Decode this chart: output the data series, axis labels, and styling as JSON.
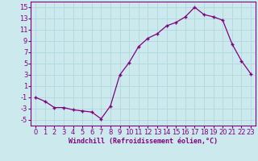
{
  "x": [
    0,
    1,
    2,
    3,
    4,
    5,
    6,
    7,
    8,
    9,
    10,
    11,
    12,
    13,
    14,
    15,
    16,
    17,
    18,
    19,
    20,
    21,
    22,
    23
  ],
  "y": [
    -1,
    -1.7,
    -2.8,
    -2.8,
    -3.2,
    -3.4,
    -3.6,
    -4.8,
    -2.5,
    3.0,
    5.2,
    8.0,
    9.5,
    10.3,
    11.7,
    12.3,
    13.3,
    15.0,
    13.7,
    13.3,
    12.7,
    8.5,
    5.5,
    3.2
  ],
  "line_color": "#800080",
  "marker": "+",
  "marker_size": 3,
  "linewidth": 0.9,
  "xlabel": "Windchill (Refroidissement éolien,°C)",
  "xlim": [
    -0.5,
    23.5
  ],
  "ylim": [
    -6,
    16
  ],
  "yticks": [
    -5,
    -3,
    -1,
    1,
    3,
    5,
    7,
    9,
    11,
    13,
    15
  ],
  "xticks": [
    0,
    1,
    2,
    3,
    4,
    5,
    6,
    7,
    8,
    9,
    10,
    11,
    12,
    13,
    14,
    15,
    16,
    17,
    18,
    19,
    20,
    21,
    22,
    23
  ],
  "bg_color": "#cce9ed",
  "grid_color": "#b0d8de",
  "tick_color": "#800080",
  "label_color": "#800080",
  "xlabel_fontsize": 6.0,
  "tick_fontsize": 6.0
}
